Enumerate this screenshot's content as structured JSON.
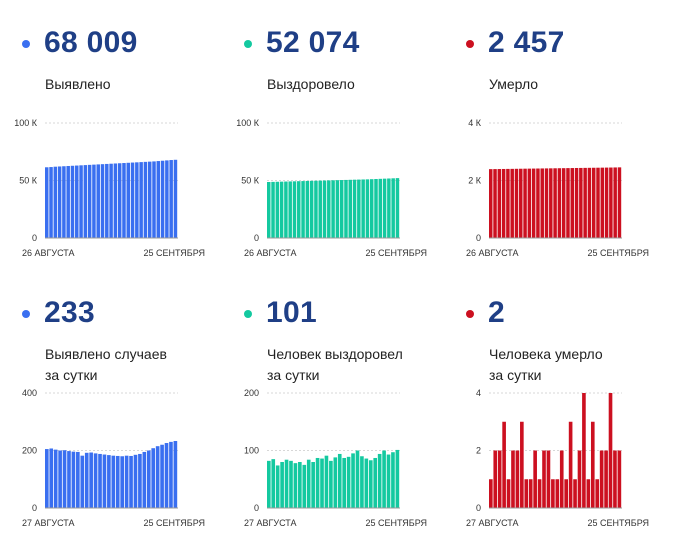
{
  "panels": [
    {
      "value": "68 009",
      "caption": [
        "Выявлено"
      ],
      "color": "#3a6ff0",
      "dot_color": "#3a6ff0",
      "y_ticks": [
        "100 К",
        "50 К",
        "0"
      ],
      "x_start": "26 АВГУСТА",
      "x_end": "25 СЕНТЯБРЯ"
    },
    {
      "value": "52 074",
      "caption": [
        "Выздоровело"
      ],
      "color": "#14c9a0",
      "dot_color": "#14c9a0",
      "y_ticks": [
        "100 К",
        "50 К",
        "0"
      ],
      "x_start": "26 АВГУСТА",
      "x_end": "25 СЕНТЯБРЯ"
    },
    {
      "value": "2 457",
      "caption": [
        "Умерло"
      ],
      "color": "#cc1020",
      "dot_color": "#cc1020",
      "y_ticks": [
        "4 К",
        "2 К",
        "0"
      ],
      "x_start": "26 АВГУСТА",
      "x_end": "25 СЕНТЯБРЯ"
    },
    {
      "value": "233",
      "caption": [
        "Выявлено случаев",
        "за сутки"
      ],
      "color": "#3a6ff0",
      "dot_color": "#3a6ff0",
      "y_ticks": [
        "400",
        "200",
        "0"
      ],
      "x_start": "27 АВГУСТА",
      "x_end": "25 СЕНТЯБРЯ"
    },
    {
      "value": "101",
      "caption": [
        "Человек выздоровел",
        "за сутки"
      ],
      "color": "#14c9a0",
      "dot_color": "#14c9a0",
      "y_ticks": [
        "200",
        "100",
        "0"
      ],
      "x_start": "27 АВГУСТА",
      "x_end": "25 СЕНТЯБРЯ"
    },
    {
      "value": "2",
      "caption": [
        "Человека умерло",
        "за сутки"
      ],
      "color": "#cc1020",
      "dot_color": "#cc1020",
      "y_ticks": [
        "4",
        "2",
        "0"
      ],
      "x_start": "27 АВГУСТА",
      "x_end": "25 СЕНТЯБРЯ"
    }
  ],
  "chart_data": [
    {
      "type": "bar",
      "title": "Выявлено",
      "x_start": "26 августа",
      "x_end": "25 сентября",
      "ylim": [
        0,
        100000
      ],
      "values": [
        61500,
        61700,
        62000,
        62200,
        62400,
        62600,
        62800,
        63000,
        63200,
        63400,
        63600,
        63800,
        64000,
        64200,
        64400,
        64600,
        64800,
        65000,
        65200,
        65400,
        65600,
        65800,
        66000,
        66200,
        66400,
        66600,
        66900,
        67200,
        67500,
        67800,
        68009
      ]
    },
    {
      "type": "bar",
      "title": "Выздоровело",
      "x_start": "26 августа",
      "x_end": "25 сентября",
      "ylim": [
        0,
        100000
      ],
      "values": [
        48700,
        48800,
        48900,
        49000,
        49100,
        49200,
        49300,
        49400,
        49500,
        49600,
        49700,
        49800,
        49900,
        50000,
        50100,
        50200,
        50300,
        50400,
        50500,
        50600,
        50700,
        50800,
        50900,
        51000,
        51150,
        51300,
        51450,
        51600,
        51750,
        51900,
        52074
      ]
    },
    {
      "type": "bar",
      "title": "Умерло",
      "x_start": "26 августа",
      "x_end": "25 сентября",
      "ylim": [
        0,
        4000
      ],
      "values": [
        2395,
        2397,
        2399,
        2401,
        2403,
        2405,
        2407,
        2409,
        2411,
        2413,
        2415,
        2417,
        2419,
        2421,
        2423,
        2425,
        2427,
        2429,
        2431,
        2433,
        2435,
        2437,
        2439,
        2441,
        2443,
        2445,
        2447,
        2449,
        2451,
        2454,
        2457
      ]
    },
    {
      "type": "bar",
      "title": "Выявлено случаев за сутки",
      "x_start": "27 августа",
      "x_end": "25 сентября",
      "ylim": [
        0,
        400
      ],
      "values": [
        205,
        207,
        203,
        200,
        201,
        198,
        196,
        195,
        182,
        192,
        193,
        190,
        188,
        186,
        184,
        182,
        181,
        180,
        182,
        181,
        185,
        188,
        195,
        200,
        208,
        215,
        220,
        226,
        230,
        233
      ]
    },
    {
      "type": "bar",
      "title": "Человек выздоровел за сутки",
      "x_start": "27 августа",
      "x_end": "25 сентября",
      "ylim": [
        0,
        200
      ],
      "values": [
        82,
        85,
        74,
        80,
        84,
        82,
        78,
        80,
        75,
        84,
        80,
        87,
        86,
        91,
        82,
        88,
        94,
        87,
        89,
        95,
        100,
        90,
        86,
        83,
        87,
        94,
        100,
        93,
        97,
        101
      ]
    },
    {
      "type": "bar",
      "title": "Человека умерло за сутки",
      "x_start": "27 августа",
      "x_end": "25 сентября",
      "ylim": [
        0,
        4
      ],
      "values": [
        1,
        2,
        2,
        3,
        1,
        2,
        2,
        3,
        1,
        1,
        2,
        1,
        2,
        2,
        1,
        1,
        2,
        1,
        3,
        1,
        2,
        4,
        1,
        3,
        1,
        2,
        2,
        4,
        2,
        2
      ]
    }
  ]
}
